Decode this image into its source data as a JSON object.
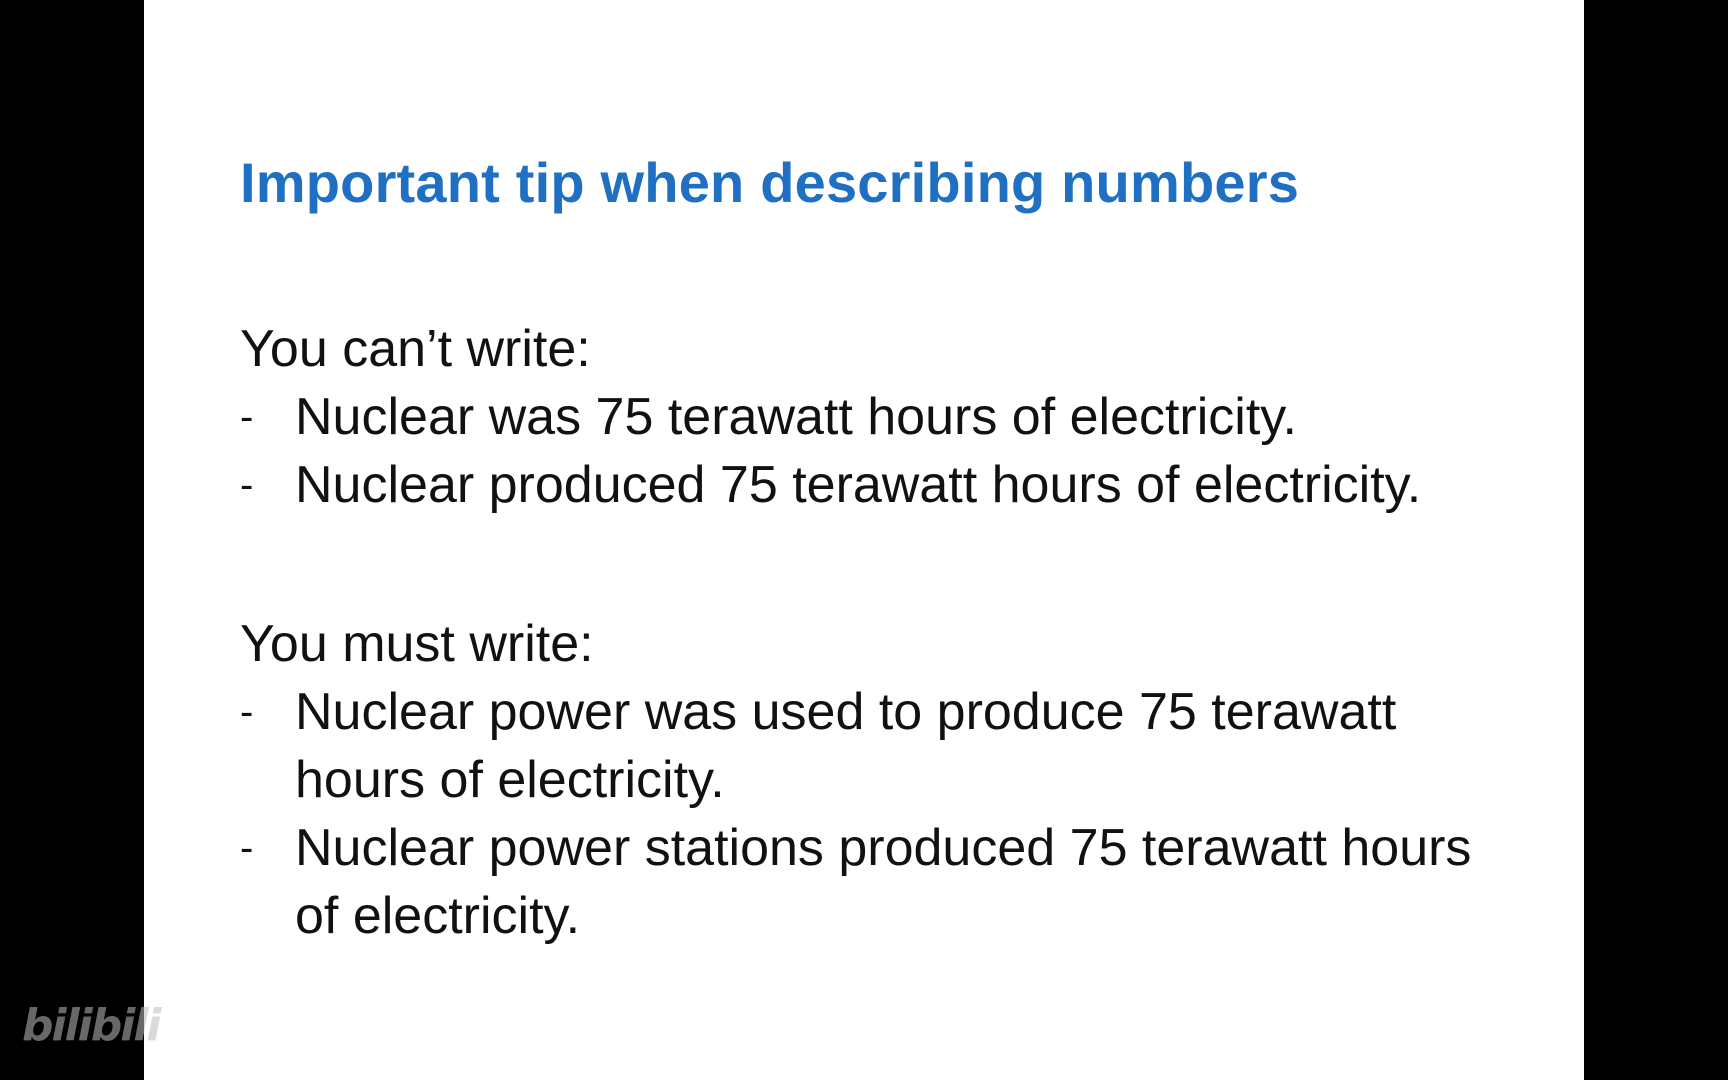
{
  "watermark": "bilibili",
  "slide": {
    "title": "Important tip when describing numbers",
    "title_color": "#1f6fc2",
    "cant_section": {
      "heading": "You can’t write:",
      "items": [
        "Nuclear was 75 terawatt hours of electricity.",
        "Nuclear produced 75 terawatt hours of electricity."
      ]
    },
    "must_section": {
      "heading": "You must write:",
      "items": [
        "Nuclear power was used to produce 75 terawatt hours of electricity.",
        "Nuclear power stations produced 75 terawatt hours of electricity."
      ]
    },
    "bullet_marker": "-"
  }
}
